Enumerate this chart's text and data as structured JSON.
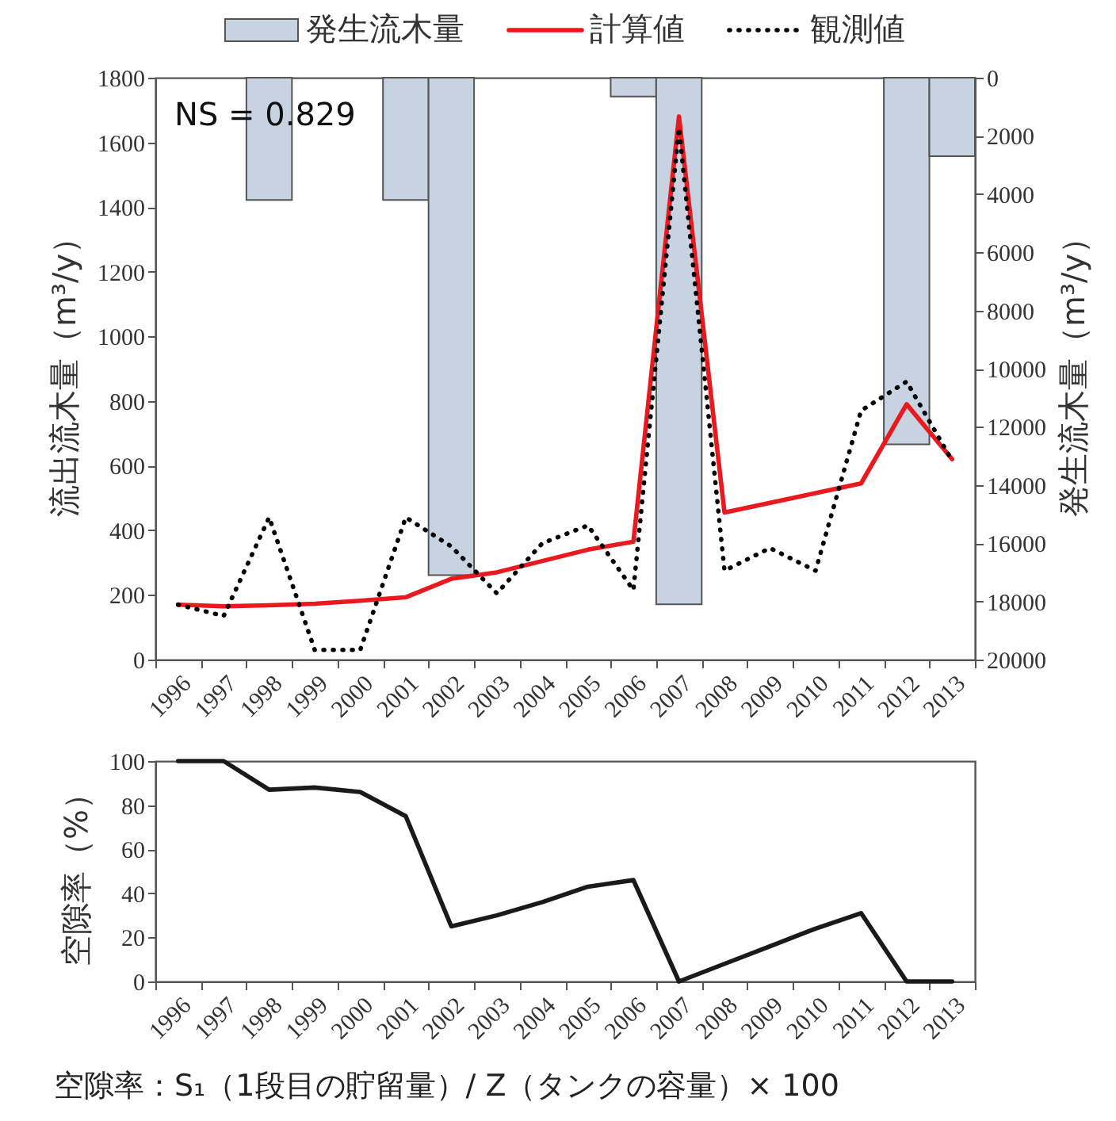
{
  "chart_data": [
    {
      "type": "line",
      "legend": "top",
      "grid": false,
      "categories": [
        "1996",
        "1997",
        "1998",
        "1999",
        "2000",
        "2001",
        "2002",
        "2003",
        "2004",
        "2005",
        "2006",
        "2007",
        "2008",
        "2009",
        "2010",
        "2011",
        "2012",
        "2013"
      ],
      "series": [
        {
          "name": "発生流木量",
          "type": "bar",
          "axis": "y2",
          "color": "#c8d3e2",
          "values": [
            null,
            null,
            4200,
            null,
            null,
            4200,
            17100,
            null,
            null,
            null,
            650,
            18100,
            null,
            null,
            null,
            null,
            12600,
            2700
          ]
        },
        {
          "name": "計算値",
          "type": "line",
          "color": "#e8191f",
          "line_style": "solid",
          "values": [
            170,
            165,
            168,
            173,
            182,
            193,
            250,
            270,
            305,
            340,
            365,
            1680,
            455,
            485,
            515,
            545,
            790,
            620
          ]
        },
        {
          "name": "観測値",
          "type": "line",
          "color": "#000000",
          "line_style": "dotted",
          "values": [
            170,
            135,
            440,
            30,
            30,
            440,
            350,
            205,
            360,
            415,
            215,
            1645,
            275,
            345,
            275,
            770,
            860,
            615
          ]
        }
      ],
      "ylabel": "流出流木量（m³/y）",
      "y2label": "発生流木量（m³/y）",
      "ylim": [
        0,
        1800
      ],
      "yticks": [
        0,
        200,
        400,
        600,
        800,
        1000,
        1200,
        1400,
        1600,
        1800
      ],
      "y2lim": [
        20000,
        0
      ],
      "y2ticks": [
        0,
        2000,
        4000,
        6000,
        8000,
        10000,
        12000,
        14000,
        16000,
        18000,
        20000
      ],
      "annotations": [
        "NS = 0.829"
      ]
    },
    {
      "type": "line",
      "grid": false,
      "categories": [
        "1996",
        "1997",
        "1998",
        "1999",
        "2000",
        "2001",
        "2002",
        "2003",
        "2004",
        "2005",
        "2006",
        "2007",
        "2008",
        "2009",
        "2010",
        "2011",
        "2012",
        "2013"
      ],
      "values": [
        100,
        100,
        87,
        88,
        86,
        75,
        25,
        30,
        36,
        43,
        46,
        0,
        8,
        16,
        24,
        31,
        0,
        0
      ],
      "color": "#1a1a1a",
      "ylabel": "空隙率（%）",
      "ylim": [
        0,
        100
      ],
      "yticks": [
        0,
        20,
        40,
        60,
        80,
        100
      ],
      "annotations": [
        "空隙率：S₁（1段目の貯留量）/ Z（タンクの容量）× 100"
      ]
    }
  ]
}
